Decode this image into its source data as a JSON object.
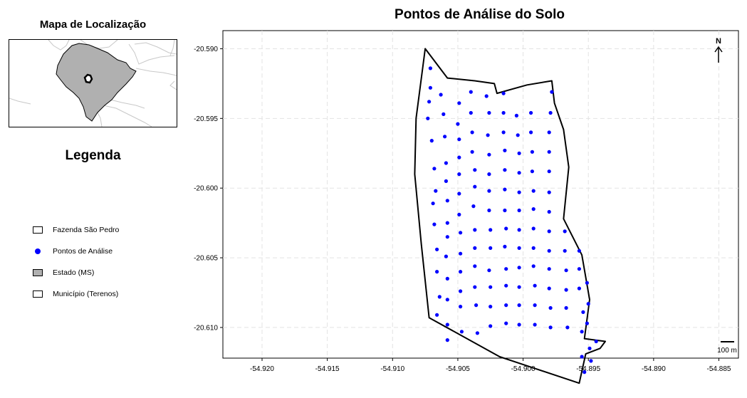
{
  "inset": {
    "title": "Mapa de Localização"
  },
  "legend": {
    "title": "Legenda",
    "items": [
      {
        "label": "Fazenda São Pedro",
        "key": "white-box"
      },
      {
        "label": "Pontos de Análise",
        "key": "blue-point"
      },
      {
        "label": "Estado (MS)",
        "key": "gray-box"
      },
      {
        "label": "Município (Terenos)",
        "key": "white-box"
      }
    ]
  },
  "map": {
    "title": "Pontos de Análise do Solo",
    "north_label": "N",
    "scale_label": "100 m",
    "xlim": [
      -54.923,
      -54.8835
    ],
    "ylim": [
      -20.6122,
      -20.5887
    ],
    "x_ticks": [
      "-54.920",
      "-54.915",
      "-54.910",
      "-54.905",
      "-54.900",
      "-54.895",
      "-54.890",
      "-54.885"
    ],
    "y_ticks": [
      "-20.590",
      "-20.595",
      "-20.600",
      "-20.605",
      "-20.610"
    ],
    "grid": true,
    "colors": {
      "points": "#0000ff",
      "state_fill": "#b0b0b0",
      "grid": "#e3e3e3"
    },
    "farm_boundary": [
      [
        -54.9075,
        -20.59
      ],
      [
        -54.9058,
        -20.5921
      ],
      [
        -54.9037,
        -20.5923
      ],
      [
        -54.9022,
        -20.5925
      ],
      [
        -54.902,
        -20.5932
      ],
      [
        -54.8997,
        -20.5926
      ],
      [
        -54.8978,
        -20.5923
      ],
      [
        -54.8976,
        -20.5939
      ],
      [
        -54.8969,
        -20.5958
      ],
      [
        -54.8965,
        -20.5985
      ],
      [
        -54.8969,
        -20.6022
      ],
      [
        -54.8955,
        -20.6048
      ],
      [
        -54.8949,
        -20.608
      ],
      [
        -54.8953,
        -20.6108
      ],
      [
        -54.8937,
        -20.611
      ],
      [
        -54.8941,
        -20.6115
      ],
      [
        -54.8952,
        -20.6119
      ],
      [
        -54.8957,
        -20.614
      ],
      [
        -54.9018,
        -20.6121
      ],
      [
        -54.9072,
        -20.6093
      ],
      [
        -54.9078,
        -20.604
      ],
      [
        -54.9083,
        -20.599
      ],
      [
        -54.9082,
        -20.595
      ],
      [
        -54.9075,
        -20.59
      ]
    ],
    "analysis_points": [
      [
        -54.9071,
        -20.5914
      ],
      [
        -54.9071,
        -20.5928
      ],
      [
        -54.9072,
        -20.5938
      ],
      [
        -54.9073,
        -20.595
      ],
      [
        -54.907,
        -20.5966
      ],
      [
        -54.9068,
        -20.5986
      ],
      [
        -54.9067,
        -20.6002
      ],
      [
        -54.9069,
        -20.6011
      ],
      [
        -54.9068,
        -20.6026
      ],
      [
        -54.9066,
        -20.6044
      ],
      [
        -54.9066,
        -20.606
      ],
      [
        -54.9064,
        -20.6078
      ],
      [
        -54.9066,
        -20.6091
      ],
      [
        -54.9063,
        -20.5933
      ],
      [
        -54.9061,
        -20.5947
      ],
      [
        -54.906,
        -20.5963
      ],
      [
        -54.9059,
        -20.5982
      ],
      [
        -54.9059,
        -20.5995
      ],
      [
        -54.9058,
        -20.6009
      ],
      [
        -54.9058,
        -20.6025
      ],
      [
        -54.9058,
        -20.6035
      ],
      [
        -54.9059,
        -20.6049
      ],
      [
        -54.9058,
        -20.6065
      ],
      [
        -54.9058,
        -20.608
      ],
      [
        -54.9058,
        -20.6098
      ],
      [
        -54.9058,
        -20.6109
      ],
      [
        -54.9049,
        -20.5939
      ],
      [
        -54.905,
        -20.5954
      ],
      [
        -54.9049,
        -20.5965
      ],
      [
        -54.9049,
        -20.5978
      ],
      [
        -54.9049,
        -20.599
      ],
      [
        -54.9049,
        -20.6004
      ],
      [
        -54.9049,
        -20.6019
      ],
      [
        -54.9048,
        -20.6032
      ],
      [
        -54.9048,
        -20.6047
      ],
      [
        -54.9048,
        -20.606
      ],
      [
        -54.9048,
        -20.6074
      ],
      [
        -54.9048,
        -20.6085
      ],
      [
        -54.9047,
        -20.6103
      ],
      [
        -54.904,
        -20.5931
      ],
      [
        -54.904,
        -20.5946
      ],
      [
        -54.9039,
        -20.596
      ],
      [
        -54.9039,
        -20.5974
      ],
      [
        -54.9037,
        -20.5987
      ],
      [
        -54.9037,
        -20.5999
      ],
      [
        -54.9038,
        -20.6013
      ],
      [
        -54.9037,
        -20.603
      ],
      [
        -54.9037,
        -20.6043
      ],
      [
        -54.9037,
        -20.6056
      ],
      [
        -54.9037,
        -20.6071
      ],
      [
        -54.9036,
        -20.6084
      ],
      [
        -54.9035,
        -20.6104
      ],
      [
        -54.9028,
        -20.5934
      ],
      [
        -54.9026,
        -20.5946
      ],
      [
        -54.9027,
        -20.5962
      ],
      [
        -54.9026,
        -20.5976
      ],
      [
        -54.9026,
        -20.599
      ],
      [
        -54.9026,
        -20.6002
      ],
      [
        -54.9026,
        -20.6016
      ],
      [
        -54.9025,
        -20.603
      ],
      [
        -54.9025,
        -20.6043
      ],
      [
        -54.9026,
        -20.6059
      ],
      [
        -54.9025,
        -20.6071
      ],
      [
        -54.9025,
        -20.6085
      ],
      [
        -54.9025,
        -20.6099
      ],
      [
        -54.9015,
        -20.5932
      ],
      [
        -54.9015,
        -20.5946
      ],
      [
        -54.9015,
        -20.596
      ],
      [
        -54.9014,
        -20.5973
      ],
      [
        -54.9014,
        -20.5987
      ],
      [
        -54.9014,
        -20.6001
      ],
      [
        -54.9014,
        -20.6016
      ],
      [
        -54.9013,
        -20.6029
      ],
      [
        -54.9014,
        -20.6042
      ],
      [
        -54.9013,
        -20.6058
      ],
      [
        -54.9013,
        -20.607
      ],
      [
        -54.9013,
        -20.6084
      ],
      [
        -54.9013,
        -20.6097
      ],
      [
        -54.9005,
        -20.5948
      ],
      [
        -54.9004,
        -20.5962
      ],
      [
        -54.9003,
        -20.5975
      ],
      [
        -54.9003,
        -20.5989
      ],
      [
        -54.9003,
        -20.6003
      ],
      [
        -54.9003,
        -20.6016
      ],
      [
        -54.9003,
        -20.603
      ],
      [
        -54.9003,
        -20.6043
      ],
      [
        -54.9003,
        -20.6057
      ],
      [
        -54.9003,
        -20.6071
      ],
      [
        -54.9003,
        -20.6084
      ],
      [
        -54.9003,
        -20.6098
      ],
      [
        -54.8994,
        -20.5946
      ],
      [
        -54.8994,
        -20.596
      ],
      [
        -54.8993,
        -20.5974
      ],
      [
        -54.8993,
        -20.5988
      ],
      [
        -54.8992,
        -20.6002
      ],
      [
        -54.8992,
        -20.6015
      ],
      [
        -54.8992,
        -20.6029
      ],
      [
        -54.8992,
        -20.6043
      ],
      [
        -54.8992,
        -20.6056
      ],
      [
        -54.8991,
        -20.607
      ],
      [
        -54.8991,
        -20.6084
      ],
      [
        -54.8991,
        -20.6098
      ],
      [
        -54.8978,
        -20.5931
      ],
      [
        -54.8979,
        -20.5946
      ],
      [
        -54.898,
        -20.596
      ],
      [
        -54.898,
        -20.5974
      ],
      [
        -54.898,
        -20.5988
      ],
      [
        -54.898,
        -20.6003
      ],
      [
        -54.898,
        -20.6017
      ],
      [
        -54.898,
        -20.6031
      ],
      [
        -54.898,
        -20.6045
      ],
      [
        -54.898,
        -20.6058
      ],
      [
        -54.898,
        -20.6072
      ],
      [
        -54.8979,
        -20.6086
      ],
      [
        -54.8979,
        -20.61
      ],
      [
        -54.8968,
        -20.6031
      ],
      [
        -54.8968,
        -20.6045
      ],
      [
        -54.8967,
        -20.6059
      ],
      [
        -54.8967,
        -20.6073
      ],
      [
        -54.8967,
        -20.6086
      ],
      [
        -54.8966,
        -20.61
      ],
      [
        -54.8957,
        -20.6045
      ],
      [
        -54.8957,
        -20.6058
      ],
      [
        -54.8957,
        -20.6072
      ],
      [
        -54.8954,
        -20.6089
      ],
      [
        -54.8955,
        -20.6103
      ],
      [
        -54.8955,
        -20.6121
      ],
      [
        -54.8951,
        -20.6068
      ],
      [
        -54.895,
        -20.6083
      ],
      [
        -54.8951,
        -20.6097
      ],
      [
        -54.8949,
        -20.6115
      ],
      [
        -54.8948,
        -20.6124
      ],
      [
        -54.8944,
        -20.611
      ],
      [
        -54.8953,
        -20.6132
      ]
    ]
  }
}
